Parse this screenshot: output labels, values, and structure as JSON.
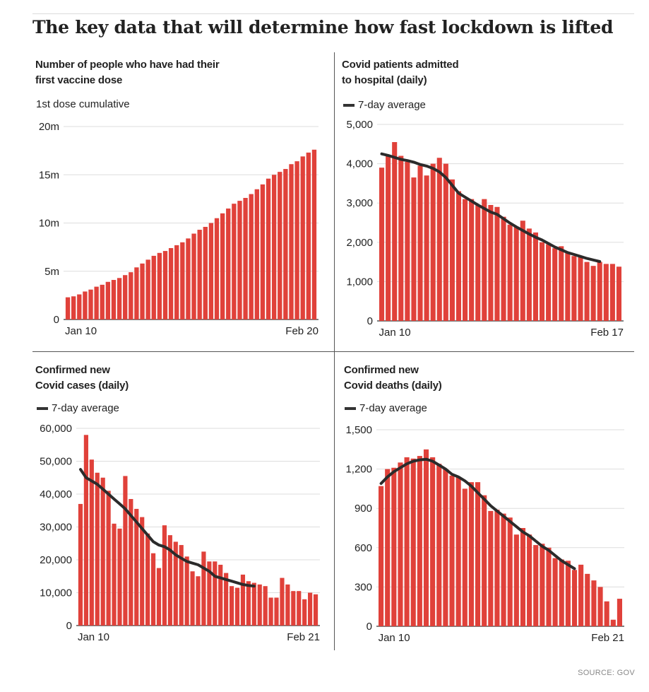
{
  "title": "The key data that will determine how fast lockdown is lifted",
  "source": "SOURCE: GOV",
  "colors": {
    "bar": "#e0413a",
    "line": "#2b2b2b",
    "grid": "#dddddd",
    "axis": "#333333"
  },
  "panels": [
    {
      "title": "Number of people who have had their\nfirst vaccine dose",
      "legend": "1st dose cumulative",
      "legend_kind": "text"
    },
    {
      "title": "Covid patients admitted\nto hospital (daily)",
      "legend": "7-day average",
      "legend_kind": "line"
    },
    {
      "title": "Confirmed new\nCovid cases (daily)",
      "legend": "7-day average",
      "legend_kind": "line"
    },
    {
      "title": "Confirmed new\nCovid deaths (daily)",
      "legend": "7-day average",
      "legend_kind": "line"
    }
  ],
  "chart_data": [
    {
      "type": "bar",
      "title": "Number of people who have had their first vaccine dose",
      "ylim": [
        0,
        20
      ],
      "yticks": [
        0,
        5,
        10,
        15,
        20
      ],
      "ytick_labels": [
        "0",
        "5m",
        "10m",
        "15m",
        "20m"
      ],
      "x_start_label": "Jan 10",
      "x_end_label": "Feb 20",
      "values": [
        2.3,
        2.4,
        2.6,
        2.9,
        3.1,
        3.4,
        3.6,
        3.9,
        4.1,
        4.3,
        4.6,
        4.9,
        5.4,
        5.8,
        6.2,
        6.6,
        6.9,
        7.1,
        7.4,
        7.7,
        8.0,
        8.4,
        8.9,
        9.3,
        9.6,
        10.0,
        10.5,
        11.0,
        11.5,
        12.0,
        12.3,
        12.6,
        13.0,
        13.5,
        14.0,
        14.6,
        15.0,
        15.3,
        15.6,
        16.1,
        16.4,
        16.9,
        17.3,
        17.6
      ]
    },
    {
      "type": "bar",
      "title": "Covid patients admitted to hospital (daily)",
      "ylim": [
        0,
        5000
      ],
      "yticks": [
        0,
        1000,
        2000,
        3000,
        4000,
        5000
      ],
      "ytick_labels": [
        "0",
        "1,000",
        "2,000",
        "3,000",
        "4,000",
        "5,000"
      ],
      "x_start_label": "Jan 10",
      "x_end_label": "Feb 17",
      "values": [
        3900,
        4200,
        4550,
        4200,
        4050,
        3650,
        3950,
        3700,
        4000,
        4150,
        4000,
        3600,
        3300,
        3100,
        3100,
        2950,
        3100,
        2950,
        2900,
        2650,
        2450,
        2400,
        2550,
        2350,
        2250,
        2000,
        1950,
        1850,
        1900,
        1750,
        1650,
        1650,
        1500,
        1400,
        1500,
        1450,
        1450,
        1380
      ],
      "series": [
        {
          "name": "7-day average",
          "type": "line",
          "values": [
            4250,
            4210,
            4160,
            4110,
            4080,
            4040,
            3980,
            3940,
            3880,
            3790,
            3650,
            3450,
            3250,
            3150,
            3050,
            2950,
            2860,
            2770,
            2710,
            2600,
            2490,
            2390,
            2300,
            2210,
            2130,
            2060,
            1970,
            1880,
            1810,
            1740,
            1690,
            1640,
            1590,
            1550,
            1510,
            null,
            null,
            null
          ]
        }
      ]
    },
    {
      "type": "bar",
      "title": "Confirmed new Covid cases (daily)",
      "ylim": [
        0,
        60000
      ],
      "yticks": [
        0,
        10000,
        20000,
        30000,
        40000,
        50000,
        60000
      ],
      "ytick_labels": [
        "0",
        "10,000",
        "20,000",
        "30,000",
        "40,000",
        "50,000",
        "60,000"
      ],
      "x_start_label": "Jan 10",
      "x_end_label": "Feb 21",
      "values": [
        37000,
        58000,
        50500,
        46500,
        45000,
        41000,
        31000,
        29500,
        45500,
        38500,
        35500,
        33000,
        28000,
        22000,
        17500,
        30500,
        27500,
        25500,
        24500,
        21000,
        16500,
        15000,
        22500,
        19500,
        19500,
        18500,
        16000,
        12000,
        11500,
        15500,
        13500,
        13000,
        12500,
        12000,
        8500,
        8500,
        14500,
        12500,
        10500,
        10500,
        8000,
        10000,
        9500
      ],
      "series": [
        {
          "name": "7-day average",
          "type": "line",
          "values": [
            47500,
            45000,
            44000,
            43000,
            41500,
            40000,
            38500,
            37000,
            35500,
            33500,
            31500,
            29500,
            27500,
            25500,
            24500,
            24000,
            23000,
            21500,
            20500,
            19500,
            19000,
            18500,
            17500,
            16500,
            15000,
            14500,
            14000,
            13500,
            13000,
            12500,
            12200,
            12000,
            null,
            null,
            null,
            null,
            null,
            null,
            null,
            null,
            null,
            null,
            null
          ]
        }
      ]
    },
    {
      "type": "bar",
      "title": "Confirmed new Covid deaths (daily)",
      "ylim": [
        0,
        1500
      ],
      "yticks": [
        0,
        300,
        600,
        900,
        1200,
        1500
      ],
      "ytick_labels": [
        "0",
        "300",
        "600",
        "900",
        "1,200",
        "1,500"
      ],
      "x_start_label": "Jan 10",
      "x_end_label": "Feb 21",
      "values": [
        1070,
        1200,
        1210,
        1250,
        1290,
        1280,
        1300,
        1350,
        1290,
        1240,
        1200,
        1150,
        1140,
        1050,
        1100,
        1100,
        1000,
        880,
        890,
        860,
        830,
        700,
        750,
        700,
        620,
        630,
        600,
        520,
        510,
        500,
        430,
        470,
        400,
        350,
        300,
        190,
        50,
        210
      ],
      "series": [
        {
          "name": "7-day average",
          "type": "line",
          "values": [
            1090,
            1140,
            1180,
            1210,
            1240,
            1260,
            1270,
            1275,
            1260,
            1230,
            1200,
            1160,
            1140,
            1110,
            1070,
            1020,
            970,
            920,
            880,
            840,
            800,
            760,
            720,
            690,
            650,
            610,
            580,
            540,
            500,
            470,
            440,
            null,
            null,
            null,
            null,
            null,
            null,
            null
          ]
        }
      ]
    }
  ]
}
